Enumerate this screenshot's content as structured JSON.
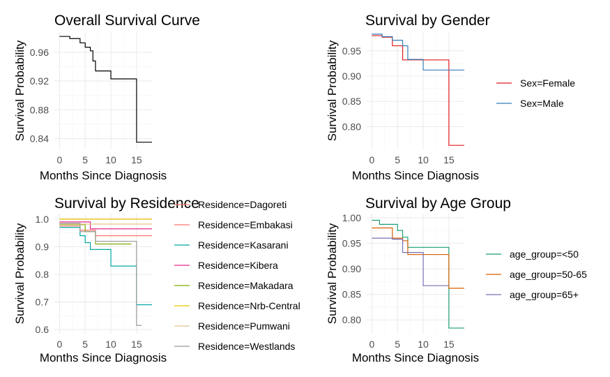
{
  "chart_data": [
    {
      "type": "line",
      "title": "Overall Survival Curve",
      "xlabel": "Months Since Diagnosis",
      "ylabel": "Survival Probability",
      "xlim": [
        -1,
        18
      ],
      "ylim": [
        0.825,
        0.988
      ],
      "x_ticks": [
        0,
        5,
        10,
        15
      ],
      "y_ticks": [
        0.84,
        0.88,
        0.92,
        0.96
      ],
      "y_tick_labels": [
        "0.84",
        "0.88",
        "0.92",
        "0.96"
      ],
      "grid": true,
      "legend": "none",
      "series": [
        {
          "color": "#000000",
          "x": [
            0,
            2,
            4,
            5,
            6,
            6.5,
            7,
            10,
            15,
            18
          ],
          "y": [
            0.982,
            0.979,
            0.973,
            0.967,
            0.962,
            0.948,
            0.934,
            0.923,
            0.835,
            0.835
          ]
        }
      ]
    },
    {
      "type": "line",
      "title": "Survival by Gender",
      "xlabel": "Months Since Diagnosis",
      "ylabel": "Survival Probability",
      "xlim": [
        -1,
        18
      ],
      "ylim": [
        0.755,
        0.987
      ],
      "x_ticks": [
        0,
        5,
        10,
        15
      ],
      "y_ticks": [
        0.8,
        0.85,
        0.9,
        0.95
      ],
      "y_tick_labels": [
        "0.80",
        "0.85",
        "0.90",
        "0.95"
      ],
      "grid": true,
      "legend": "right",
      "series": [
        {
          "name": "Sex=Female",
          "color": "#E41A1C",
          "x": [
            0,
            2,
            4,
            6,
            15,
            18
          ],
          "y": [
            0.98,
            0.977,
            0.96,
            0.932,
            0.763,
            0.763
          ]
        },
        {
          "name": "Sex=Male",
          "color": "#377EB8",
          "x": [
            0,
            2,
            4,
            6,
            7,
            10,
            18
          ],
          "y": [
            0.983,
            0.978,
            0.971,
            0.96,
            0.933,
            0.912,
            0.912
          ]
        }
      ]
    },
    {
      "type": "line",
      "title": "Survival by Residence",
      "xlabel": "Months Since Diagnosis",
      "ylabel": "Survival Probability",
      "xlim": [
        -1,
        18
      ],
      "ylim": [
        0.585,
        1.02
      ],
      "x_ticks": [
        0,
        5,
        10,
        15
      ],
      "y_ticks": [
        0.6,
        0.7,
        0.8,
        0.9,
        1.0
      ],
      "y_tick_labels": [
        "0.6",
        "0.7",
        "0.8",
        "0.9",
        "1.0"
      ],
      "grid": true,
      "legend": "right",
      "series": [
        {
          "name": "Residence=Dagoreti",
          "color": "#F8766D",
          "x": [
            0,
            18
          ],
          "y": [
            1.0,
            1.0
          ]
        },
        {
          "name": "Residence=Embakasi",
          "color": "#F8766D",
          "x": [
            0,
            4,
            7,
            18
          ],
          "y": [
            0.975,
            0.96,
            0.94,
            0.94
          ]
        },
        {
          "name": "Residence=Kasarani",
          "color": "#00A9A5",
          "x": [
            0,
            4,
            5,
            6,
            10,
            15,
            18
          ],
          "y": [
            0.97,
            0.94,
            0.915,
            0.89,
            0.83,
            0.69,
            0.69
          ]
        },
        {
          "name": "Residence=Kibera",
          "color": "#E7298A",
          "x": [
            0,
            6,
            18
          ],
          "y": [
            0.99,
            0.965,
            0.965
          ]
        },
        {
          "name": "Residence=Makadara",
          "color": "#7CAE00",
          "x": [
            0,
            5,
            7,
            14
          ],
          "y": [
            0.98,
            0.955,
            0.91,
            0.91
          ]
        },
        {
          "name": "Residence=Nrb-Central",
          "color": "#E6C800",
          "x": [
            0,
            18
          ],
          "y": [
            1.0,
            1.0
          ]
        },
        {
          "name": "Residence=Pumwani",
          "color": "#E5C494",
          "x": [
            0,
            18
          ],
          "y": [
            0.982,
            0.982
          ]
        },
        {
          "name": "Residence=Westlands",
          "color": "#999999",
          "x": [
            0,
            4,
            7,
            15,
            16
          ],
          "y": [
            0.985,
            0.955,
            0.92,
            0.615,
            0.615
          ]
        }
      ]
    },
    {
      "type": "line",
      "title": "Survival by Age Group",
      "xlabel": "Months Since Diagnosis",
      "ylabel": "Survival Probability",
      "xlim": [
        -1,
        18
      ],
      "ylim": [
        0.773,
        1.008
      ],
      "x_ticks": [
        0,
        5,
        10,
        15
      ],
      "y_ticks": [
        0.8,
        0.85,
        0.9,
        0.95,
        1.0
      ],
      "y_tick_labels": [
        "0.80",
        "0.85",
        "0.90",
        "0.95",
        "1.00"
      ],
      "grid": true,
      "legend": "right",
      "series": [
        {
          "name": "age_group=<50",
          "color": "#1B9E77",
          "x": [
            0,
            1.5,
            5,
            6,
            7,
            15,
            18
          ],
          "y": [
            0.995,
            0.987,
            0.975,
            0.962,
            0.942,
            0.784,
            0.784
          ]
        },
        {
          "name": "age_group=50-65",
          "color": "#D95F02",
          "x": [
            0,
            4,
            6,
            7,
            15,
            18
          ],
          "y": [
            0.98,
            0.96,
            0.955,
            0.928,
            0.862,
            0.862
          ]
        },
        {
          "name": "age_group=65+",
          "color": "#7570B3",
          "x": [
            0,
            4,
            6,
            10,
            15
          ],
          "y": [
            0.96,
            0.958,
            0.932,
            0.867,
            0.867
          ]
        }
      ]
    }
  ]
}
